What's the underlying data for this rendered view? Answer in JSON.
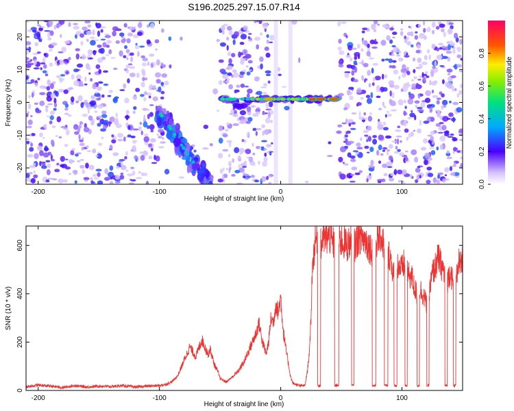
{
  "title": "S196.2025.297.15.07.R14",
  "chart_data": [
    {
      "type": "heatmap",
      "name": "spectrogram",
      "xlabel": "Height of straight line (km)",
      "ylabel": "Frequency (Hz)",
      "xlim": [
        -210,
        150
      ],
      "ylim": [
        -25,
        25
      ],
      "xticks": [
        -200,
        -100,
        0,
        100
      ],
      "yticks": [
        -20,
        -10,
        0,
        10,
        20
      ],
      "colorbar": {
        "label": "Normalized spectral amplitude",
        "range": [
          0,
          1
        ],
        "ticks": [
          0.0,
          0.2,
          0.4,
          0.6,
          0.8
        ]
      },
      "features": [
        {
          "kind": "diagonal band",
          "x": [
            -100,
            -60
          ],
          "y": [
            -3,
            -25
          ],
          "amplitude": 0.25
        },
        {
          "kind": "horizontal line",
          "x": [
            -50,
            48
          ],
          "y": [
            1,
            1
          ],
          "amplitude": 0.6,
          "peak_amplitude": 0.9
        }
      ],
      "quiet_regions": [
        [
          -96,
          -50
        ],
        [
          -7,
          48
        ]
      ]
    },
    {
      "type": "line",
      "name": "snr",
      "xlabel": "Height of straight line (km)",
      "ylabel": "SNR (10 * v/v)",
      "xlim": [
        -210,
        150
      ],
      "ylim": [
        0,
        680
      ],
      "xticks": [
        -200,
        -100,
        0,
        100
      ],
      "yticks": [
        0,
        200,
        400,
        600
      ],
      "series": [
        {
          "name": "SNR",
          "color": "#ee3333",
          "x": [
            -210,
            -200,
            -190,
            -180,
            -170,
            -160,
            -150,
            -140,
            -130,
            -120,
            -110,
            -100,
            -95,
            -90,
            -85,
            -80,
            -75,
            -70,
            -65,
            -60,
            -58,
            -55,
            -52,
            -50,
            -45,
            -40,
            -35,
            -30,
            -25,
            -20,
            -18,
            -15,
            -12,
            -10,
            -8,
            -6,
            -4,
            -2,
            0,
            2,
            4,
            6,
            8,
            10,
            15,
            20,
            22,
            24,
            25,
            26,
            28,
            30,
            31,
            32,
            34,
            35,
            36,
            40,
            44,
            45,
            46,
            50,
            55,
            58,
            59,
            60,
            61,
            65,
            70,
            75,
            76,
            77,
            80,
            82,
            85,
            86,
            87,
            90,
            93,
            94,
            95,
            97,
            100,
            102,
            103,
            104,
            105,
            108,
            110,
            112,
            113,
            114,
            115,
            118,
            120,
            121,
            122,
            123,
            125,
            128,
            130,
            132,
            134,
            135,
            136,
            137,
            138,
            140,
            142,
            143,
            144,
            145,
            146,
            147,
            148,
            150
          ],
          "y": [
            15,
            22,
            18,
            12,
            20,
            14,
            18,
            16,
            20,
            14,
            18,
            20,
            25,
            35,
            60,
            120,
            180,
            140,
            210,
            150,
            170,
            110,
            80,
            50,
            35,
            55,
            80,
            120,
            180,
            240,
            280,
            200,
            150,
            200,
            300,
            280,
            360,
            320,
            390,
            250,
            180,
            120,
            60,
            30,
            20,
            20,
            80,
            180,
            300,
            500,
            600,
            640,
            20,
            20,
            600,
            660,
            620,
            640,
            600,
            20,
            20,
            620,
            600,
            620,
            20,
            20,
            600,
            640,
            620,
            580,
            20,
            20,
            620,
            650,
            600,
            20,
            20,
            560,
            480,
            20,
            20,
            520,
            500,
            530,
            20,
            20,
            480,
            470,
            430,
            400,
            20,
            20,
            420,
            390,
            360,
            20,
            20,
            420,
            480,
            520,
            550,
            520,
            500,
            480,
            20,
            20,
            460,
            500,
            440,
            20,
            20,
            460,
            520,
            540,
            500,
            540
          ]
        }
      ]
    }
  ]
}
